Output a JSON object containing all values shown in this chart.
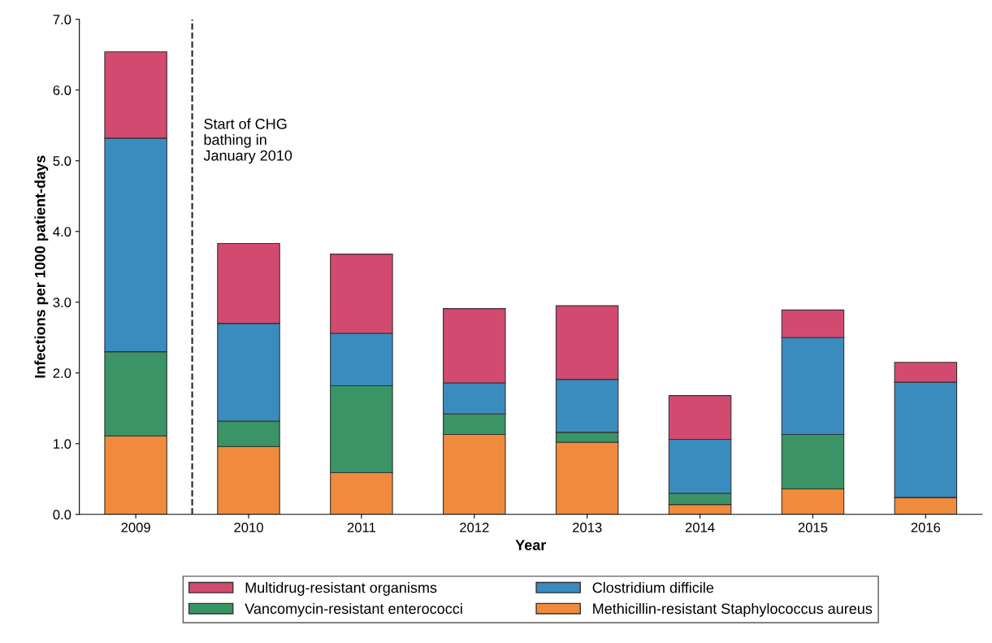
{
  "chart_data": {
    "type": "bar",
    "stacked": true,
    "xlabel": "Year",
    "ylabel": "Infections per 1000 patient-days",
    "categories": [
      "2009",
      "2010",
      "2011",
      "2012",
      "2013",
      "2014",
      "2015",
      "2016"
    ],
    "series": [
      {
        "name": "Methicillin-resistant Staphylococcus aureus",
        "color": "#f08a3c",
        "values": [
          1.11,
          0.96,
          0.59,
          1.13,
          1.02,
          0.14,
          0.36,
          0.24
        ]
      },
      {
        "name": "Vancomycin-resistant enterococci",
        "color": "#3a9466",
        "values": [
          1.19,
          0.36,
          1.23,
          0.29,
          0.14,
          0.16,
          0.77,
          0
        ]
      },
      {
        "name": "Clostridium difficile",
        "color": "#3a8cbf",
        "values": [
          3.02,
          1.38,
          0.74,
          0.44,
          0.75,
          0.76,
          1.37,
          1.63
        ]
      },
      {
        "name": "Multidrug-resistant organisms",
        "color": "#d24a70",
        "values": [
          1.22,
          1.13,
          1.12,
          1.05,
          1.04,
          0.62,
          0.39,
          0.28
        ]
      }
    ],
    "ylim": [
      0,
      7
    ],
    "yticks": [
      {
        "value": 0,
        "label": "0.0"
      },
      {
        "value": 1,
        "label": "1.0"
      },
      {
        "value": 2,
        "label": "2.0"
      },
      {
        "value": 3,
        "label": "3.0"
      },
      {
        "value": 4,
        "label": "4.0"
      },
      {
        "value": 5,
        "label": "5.0"
      },
      {
        "value": 6,
        "label": "6.0"
      },
      {
        "value": 7,
        "label": "7.0"
      }
    ],
    "annotations": [
      "Start of CHG\nbathing in\nJanuary 2010"
    ],
    "legend": "bottom",
    "grid": false
  }
}
